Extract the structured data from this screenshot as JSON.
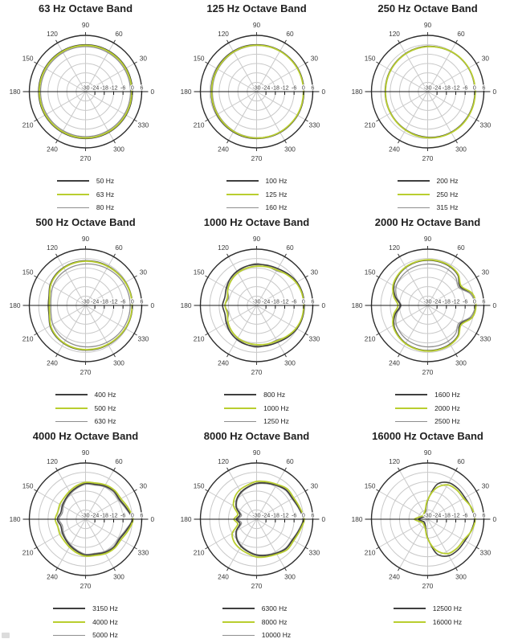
{
  "page": {
    "background": "#ffffff"
  },
  "colors": {
    "dark": "#3f3f3f",
    "green": "#b9ce2f",
    "gray": "#8f8f8f",
    "grid": "#c9c9c9",
    "outer_ring": "#2e2e2e",
    "axis": "#1a1a1a",
    "label": "#3a3a3a",
    "title": "#1f1f1f"
  },
  "chart_data": {
    "type": "polar",
    "units": "dB",
    "radial_range_db": [
      -30,
      6
    ],
    "radial_ticks_db": [
      -30,
      -24,
      -18,
      -12,
      -6,
      0,
      6
    ],
    "angle_labels_deg": [
      0,
      30,
      60,
      90,
      120,
      150,
      180,
      210,
      240,
      270,
      300,
      330
    ],
    "angles_deg": [
      0,
      15,
      30,
      45,
      60,
      75,
      90,
      105,
      120,
      135,
      150,
      165,
      180,
      195,
      210,
      225,
      240,
      255,
      270,
      285,
      300,
      315,
      330,
      345
    ],
    "charts": [
      {
        "title": "63 Hz Octave Band",
        "series": [
          {
            "label": "50 Hz",
            "color": "dark",
            "values_db": [
              0,
              0,
              0,
              0,
              0,
              0,
              0,
              0,
              0,
              0,
              0,
              0,
              0,
              0,
              0,
              0,
              0,
              0,
              0,
              0,
              0,
              0,
              0,
              0
            ]
          },
          {
            "label": "63 Hz",
            "color": "green",
            "values_db": [
              -0.4,
              -0.4,
              -0.4,
              -0.4,
              -0.4,
              -0.4,
              -0.4,
              -0.4,
              -0.4,
              -0.4,
              -0.4,
              -0.4,
              -0.4,
              -0.4,
              -0.4,
              -0.4,
              -0.4,
              -0.4,
              -0.4,
              -0.4,
              -0.4,
              -0.4,
              -0.4,
              -0.4
            ]
          },
          {
            "label": "80 Hz",
            "color": "gray",
            "values_db": [
              -1.2,
              -1.2,
              -1.2,
              -1.2,
              -1.2,
              -1.2,
              -1.2,
              -1.2,
              -1.2,
              -1.2,
              -1.2,
              -1.2,
              -1.2,
              -1.2,
              -1.2,
              -1.2,
              -1.2,
              -1.2,
              -1.2,
              -1.2,
              -1.2,
              -1.2,
              -1.2,
              -1.2
            ]
          }
        ]
      },
      {
        "title": "125 Hz Octave Band",
        "series": [
          {
            "label": "100 Hz",
            "color": "dark",
            "values_db": [
              0.3,
              0.3,
              0.3,
              0.2,
              0.2,
              0.1,
              0,
              0,
              -0.2,
              -0.4,
              -0.6,
              -0.8,
              -0.9,
              -0.8,
              -0.6,
              -0.4,
              -0.2,
              0,
              0,
              0.1,
              0.2,
              0.2,
              0.3,
              0.3
            ]
          },
          {
            "label": "125 Hz",
            "color": "green",
            "values_db": [
              0,
              0,
              0,
              -0.1,
              -0.1,
              -0.2,
              -0.3,
              -0.4,
              -0.6,
              -0.8,
              -1,
              -1.1,
              -1.2,
              -1.1,
              -1,
              -0.8,
              -0.6,
              -0.4,
              -0.3,
              -0.2,
              -0.1,
              -0.1,
              0,
              0
            ]
          },
          {
            "label": "160 Hz",
            "color": "gray",
            "values_db": [
              0.1,
              0.1,
              0,
              -0.1,
              -0.2,
              -0.3,
              -0.5,
              -0.7,
              -0.9,
              -1.2,
              -1.4,
              -1.6,
              -1.7,
              -1.6,
              -1.4,
              -1.2,
              -0.9,
              -0.7,
              -0.5,
              -0.3,
              -0.2,
              -0.1,
              0,
              0.1
            ]
          }
        ]
      },
      {
        "title": "250 Hz Octave Band",
        "series": [
          {
            "label": "200 Hz",
            "color": "dark",
            "values_db": [
              0.3,
              0.3,
              0.2,
              0,
              -0.3,
              -0.7,
              -1,
              -1.4,
              -1.8,
              -2.2,
              -2.5,
              -2.7,
              -2.8,
              -2.7,
              -2.5,
              -2.2,
              -1.8,
              -1.3,
              -0.8,
              -0.3,
              0,
              0.2,
              0.3,
              0.3
            ]
          },
          {
            "label": "250 Hz",
            "color": "green",
            "values_db": [
              0.5,
              0.4,
              0.3,
              0.1,
              -0.3,
              -0.8,
              -1.2,
              -1.6,
              -2,
              -2.4,
              -2.7,
              -2.9,
              -3,
              -2.8,
              -2.5,
              -2.1,
              -1.6,
              -1,
              -0.5,
              0,
              0.3,
              0.5,
              0.5,
              0.5
            ]
          },
          {
            "label": "315 Hz",
            "color": "gray",
            "values_db": [
              0.2,
              0.2,
              0.1,
              -0.1,
              -0.5,
              -0.9,
              -1.3,
              -1.7,
              -2.1,
              -2.5,
              -2.8,
              -3,
              -3.1,
              -3,
              -2.8,
              -2.4,
              -1.9,
              -1.3,
              -0.7,
              -0.2,
              0.1,
              0.3,
              0.3,
              0.3
            ]
          }
        ]
      },
      {
        "title": "500 Hz Octave Band",
        "series": [
          {
            "label": "400 Hz",
            "color": "dark",
            "values_db": [
              0,
              -0.1,
              -0.4,
              -0.8,
              -1,
              -1.2,
              -1.4,
              -1.6,
              -2,
              -2.6,
              -3.8,
              -5.8,
              -6.2,
              -5.8,
              -3.8,
              -2.6,
              -2,
              -1.6,
              -1.4,
              -1.2,
              -1,
              -0.8,
              -0.4,
              -0.1
            ]
          },
          {
            "label": "500 Hz",
            "color": "green",
            "values_db": [
              -0.2,
              -0.3,
              -0.6,
              -1,
              -1.3,
              -1.5,
              -1.7,
              -1.9,
              -2.3,
              -3,
              -4.2,
              -6.2,
              -6.8,
              -6.2,
              -4.2,
              -3,
              -2.3,
              -1.9,
              -1.7,
              -1.5,
              -1.3,
              -1,
              -0.6,
              -0.3
            ]
          },
          {
            "label": "630 Hz",
            "color": "gray",
            "values_db": [
              -1.4,
              -1.5,
              -1.8,
              -2.2,
              -2.7,
              -3.1,
              -3.5,
              -3.8,
              -4.2,
              -4.8,
              -5.8,
              -7.2,
              -7.8,
              -7.2,
              -5.8,
              -4.8,
              -4.2,
              -3.8,
              -3.5,
              -3.1,
              -2.7,
              -2.2,
              -1.8,
              -1.5
            ]
          }
        ]
      },
      {
        "title": "1000 Hz Octave Band",
        "series": [
          {
            "label": "800 Hz",
            "color": "dark",
            "values_db": [
              0.5,
              0.4,
              -0.2,
              -1.5,
              -2.8,
              -3.4,
              -3.8,
              -4.1,
              -4.8,
              -6,
              -7.6,
              -9,
              -8.2,
              -9,
              -7.6,
              -6,
              -4.8,
              -4.1,
              -3.8,
              -3.4,
              -2.8,
              -1.5,
              -0.2,
              0.4
            ]
          },
          {
            "label": "1000 Hz",
            "color": "green",
            "values_db": [
              0.1,
              0,
              -0.8,
              -2.3,
              -3.8,
              -4.4,
              -4.9,
              -5.3,
              -6,
              -7.2,
              -8.8,
              -10.6,
              -9.8,
              -10.6,
              -8.8,
              -7.2,
              -6,
              -5.3,
              -4.9,
              -4.4,
              -3.8,
              -2.3,
              -0.8,
              0
            ]
          },
          {
            "label": "1250 Hz",
            "color": "gray",
            "values_db": [
              0.2,
              0,
              -0.6,
              -2,
              -4.4,
              -4,
              -3.2,
              -4.2,
              -5.6,
              -7,
              -8.4,
              -11.4,
              -9.6,
              -11.4,
              -8.4,
              -7,
              -5.6,
              -4.2,
              -3.2,
              -4,
              -4.4,
              -2,
              -0.6,
              0
            ]
          }
        ]
      },
      {
        "title": "2000 Hz Octave Band",
        "series": [
          {
            "label": "1600 Hz",
            "color": "dark",
            "values_db": [
              0.8,
              -0.6,
              -6,
              -2.6,
              -1.4,
              -1.1,
              -1.1,
              -1.4,
              -2,
              -3.2,
              -5,
              -8.5,
              -12.5,
              -8.5,
              -5,
              -3.2,
              -2,
              -1.4,
              -1.1,
              -1.1,
              -1.4,
              -2.6,
              -6,
              -0.6
            ]
          },
          {
            "label": "2000 Hz",
            "color": "green",
            "values_db": [
              0.9,
              -0.4,
              -5.2,
              -2.2,
              -1,
              -0.8,
              -0.8,
              -1.1,
              -1.7,
              -2.8,
              -4.4,
              -7.5,
              -11,
              -7.5,
              -4.4,
              -2.8,
              -1.7,
              -1.1,
              -0.8,
              -0.8,
              -1,
              -2.2,
              -5.2,
              -0.4
            ]
          },
          {
            "label": "2500 Hz",
            "color": "gray",
            "values_db": [
              0.4,
              -1.6,
              -7,
              -4.6,
              -3.6,
              -3.4,
              -3.5,
              -3.8,
              -4.3,
              -5.3,
              -6.6,
              -9.5,
              -13,
              -9.5,
              -6.6,
              -5.3,
              -4.3,
              -3.8,
              -3.5,
              -3.4,
              -3.6,
              -4.6,
              -7,
              -1.6
            ]
          }
        ]
      },
      {
        "title": "4000 Hz Octave Band",
        "series": [
          {
            "label": "3150 Hz",
            "color": "dark",
            "values_db": [
              0,
              -2.8,
              -4.8,
              -4.4,
              -5.4,
              -6.8,
              -7,
              -8.8,
              -10.4,
              -11.8,
              -12.8,
              -13.6,
              -12,
              -13.6,
              -12.8,
              -11.8,
              -10.4,
              -8.8,
              -7,
              -6.8,
              -5.4,
              -4.4,
              -4.8,
              -2.8
            ]
          },
          {
            "label": "4000 Hz",
            "color": "green",
            "values_db": [
              0.4,
              -1.8,
              -3.8,
              -3.8,
              -4.6,
              -6,
              -6.4,
              -7.8,
              -9.4,
              -10.6,
              -11,
              -11.6,
              -10.6,
              -11.6,
              -11,
              -10.6,
              -9.4,
              -7.8,
              -6.4,
              -6,
              -4.6,
              -3.8,
              -3.8,
              -1.8
            ]
          },
          {
            "label": "5000 Hz",
            "color": "gray",
            "values_db": [
              -0.2,
              -3.4,
              -5.4,
              -5,
              -6,
              -7.4,
              -7.6,
              -9.4,
              -11,
              -12.4,
              -13.6,
              -14.6,
              -13,
              -14.6,
              -13.6,
              -12.4,
              -11,
              -9.4,
              -7.6,
              -7.4,
              -6,
              -5,
              -5.4,
              -3.4
            ]
          }
        ]
      },
      {
        "title": "8000 Hz Octave Band",
        "series": [
          {
            "label": "6300 Hz",
            "color": "dark",
            "values_db": [
              0,
              -2,
              -3.4,
              -3.4,
              -4.8,
              -6,
              -7,
              -8.6,
              -10,
              -12,
              -15,
              -19,
              -17,
              -19,
              -15,
              -12,
              -10,
              -8.6,
              -7,
              -6,
              -4.8,
              -3.4,
              -3.4,
              -2
            ]
          },
          {
            "label": "8000 Hz",
            "color": "green",
            "values_db": [
              0.5,
              -1.4,
              -2.6,
              -2.4,
              -4.2,
              -5.2,
              -5.8,
              -7.4,
              -8.4,
              -10.2,
              -13,
              -17.5,
              -15.5,
              -17.5,
              -12,
              -9.6,
              -8.4,
              -7.4,
              -5.8,
              -5.2,
              -4.2,
              -2.4,
              -2.6,
              -1.4
            ]
          },
          {
            "label": "10000 Hz",
            "color": "gray",
            "values_db": [
              -0.3,
              -2.3,
              -3.8,
              -3.8,
              -5.2,
              -6.4,
              -7.4,
              -9,
              -10.5,
              -12.5,
              -15.5,
              -20,
              -18,
              -20,
              -15.5,
              -12.5,
              -10.5,
              -9,
              -7.4,
              -6.4,
              -5.2,
              -3.8,
              -3.8,
              -2.3
            ]
          }
        ]
      },
      {
        "title": "16000 Hz Octave Band",
        "series": [
          {
            "label": "12500 Hz",
            "color": "dark",
            "values_db": [
              0,
              -1.2,
              -2.4,
              -2.4,
              -3,
              -7,
              -18,
              -25,
              -26.5,
              -27,
              -27,
              -26,
              -24,
              -26,
              -27,
              -27,
              -26.5,
              -25,
              -18,
              -7,
              -3,
              -2.4,
              -2.4,
              -1.2
            ]
          },
          {
            "label": "16000 Hz",
            "color": "green",
            "values_db": [
              0.4,
              -1,
              -3.4,
              -3.6,
              -4.6,
              -9.5,
              -17.5,
              -24,
              -25.5,
              -26,
              -26,
              -24.5,
              -21.5,
              -24.5,
              -26,
              -26,
              -25.5,
              -24,
              -17.5,
              -9.5,
              -4.6,
              -3.6,
              -3.4,
              -1
            ]
          }
        ]
      }
    ]
  }
}
